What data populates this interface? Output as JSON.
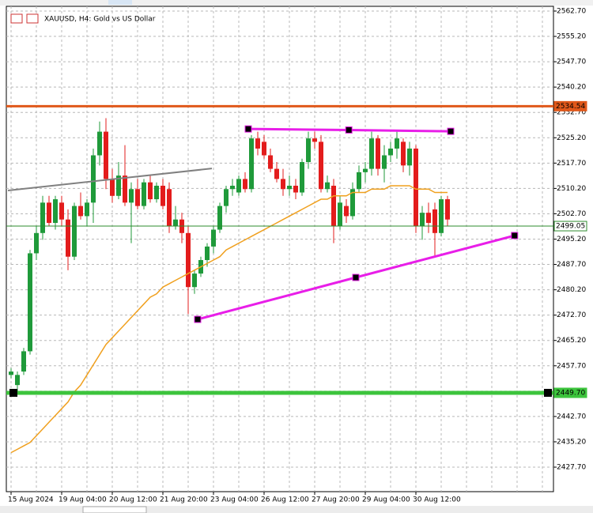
{
  "chart_data": {
    "type": "candlestick",
    "title": "XAUUSD, H4:  Gold vs US Dollar",
    "categories": [
      "15 Aug 2024",
      null,
      null,
      null,
      null,
      null,
      null,
      null,
      "19 Aug 04:00",
      null,
      null,
      null,
      null,
      null,
      null,
      null,
      "20 Aug 12:00",
      null,
      null,
      null,
      null,
      null,
      null,
      null,
      "21 Aug 20:00",
      null,
      null,
      null,
      null,
      null,
      null,
      null,
      "23 Aug 04:00",
      null,
      null,
      null,
      null,
      null,
      null,
      null,
      "26 Aug 12:00",
      null,
      null,
      null,
      null,
      null,
      null,
      null,
      "27 Aug 20:00",
      null,
      null,
      null,
      null,
      null,
      null,
      null,
      "29 Aug 04:00",
      null,
      null,
      null,
      null,
      null,
      null,
      null,
      "30 Aug 12:00",
      null,
      null,
      null,
      null,
      null
    ],
    "open": [
      2455,
      2452,
      2456,
      2462,
      2491,
      2497,
      2506,
      2500,
      2506,
      2501,
      2490,
      2505,
      2502,
      2506,
      2520,
      2527,
      2513,
      2508,
      2514,
      2506,
      2510,
      2505,
      2512,
      2507,
      2511,
      2510,
      2499,
      2501,
      2497,
      2481,
      2485,
      2489,
      2493,
      2498,
      2505,
      2510,
      2509,
      2513,
      2510,
      2525,
      2524,
      2520,
      2516,
      2513,
      2510,
      2511,
      2509,
      2518,
      2525,
      2524,
      2510,
      2511,
      2499,
      2505,
      2502,
      2510,
      2515,
      2516,
      2525,
      2516,
      2520,
      2522,
      2524,
      2517,
      2522,
      2499,
      2503,
      2504,
      2497,
      2507
    ],
    "high": [
      2457,
      2456,
      2463,
      2492,
      2499,
      2508,
      2508,
      2508,
      2508,
      2504,
      2506,
      2509,
      2507,
      2522,
      2530,
      2531,
      2516,
      2518,
      2523,
      2512,
      2513,
      2513,
      2514,
      2512,
      2513,
      2512,
      2505,
      2503,
      2499,
      2486,
      2490,
      2494,
      2499,
      2506,
      2511,
      2513,
      2514,
      2515,
      2526,
      2527,
      2526,
      2522,
      2518,
      2516,
      2514,
      2513,
      2519,
      2527,
      2527,
      2526,
      2514,
      2513,
      2508,
      2507,
      2512,
      2517,
      2518,
      2527,
      2526,
      2523,
      2524,
      2527,
      2525,
      2524,
      2523,
      2505,
      2506,
      2506,
      2508,
      2508
    ],
    "low": [
      2454,
      2450,
      2455,
      2461,
      2489,
      2495,
      2499,
      2498,
      2499,
      2486,
      2489,
      2501,
      2499,
      2500,
      2517,
      2510,
      2506,
      2507,
      2505,
      2494,
      2504,
      2504,
      2506,
      2506,
      2504,
      2497,
      2498,
      2494,
      2473,
      2479,
      2484,
      2487,
      2491,
      2497,
      2503,
      2508,
      2508,
      2509,
      2509,
      2520,
      2519,
      2515,
      2512,
      2508,
      2508,
      2507,
      2508,
      2516,
      2522,
      2509,
      2509,
      2494,
      2498,
      2500,
      2501,
      2509,
      2512,
      2514,
      2514,
      2512,
      2518,
      2519,
      2515,
      2514,
      2497,
      2495,
      2497,
      2490,
      2496,
      2499
    ],
    "close": [
      2456,
      2455,
      2462,
      2491,
      2497,
      2506,
      2500,
      2507,
      2501,
      2490,
      2505,
      2502,
      2506,
      2520,
      2527,
      2513,
      2508,
      2514,
      2506,
      2510,
      2505,
      2512,
      2507,
      2511,
      2505,
      2499,
      2501,
      2497,
      2481,
      2485,
      2489,
      2493,
      2498,
      2505,
      2510,
      2511,
      2513,
      2510,
      2525,
      2522,
      2520,
      2516,
      2513,
      2510,
      2511,
      2509,
      2518,
      2525,
      2524,
      2510,
      2512,
      2499,
      2506,
      2502,
      2510,
      2515,
      2516,
      2525,
      2516,
      2520,
      2522,
      2525,
      2517,
      2522,
      2499,
      2503,
      2500,
      2497,
      2507,
      2501
    ],
    "up_color": "#1f9a3a",
    "down_color": "#e31c1c",
    "moving_average": {
      "color": "#f0a01e",
      "values": [
        2432,
        2433,
        2434,
        2435,
        2437,
        2439,
        2441,
        2443,
        2445,
        2447,
        2450,
        2452,
        2455,
        2458,
        2461,
        2464,
        2466,
        2468,
        2470,
        2472,
        2474,
        2476,
        2478,
        2479,
        2481,
        2482,
        2483,
        2484,
        2485,
        2486,
        2487,
        2488,
        2489,
        2490,
        2492,
        2493,
        2494,
        2495,
        2496,
        2497,
        2498,
        2499,
        2500,
        2501,
        2502,
        2503,
        2504,
        2505,
        2506,
        2507,
        2507,
        2508,
        2508,
        2508,
        2509,
        2509,
        2509,
        2510,
        2510,
        2510,
        2511,
        2511,
        2511,
        2511,
        2510,
        2510,
        2510,
        2509,
        2509,
        2509
      ]
    },
    "ylim": [
      2420.45,
      2564.1
    ],
    "yticks": [
      {
        "value": 2562.7,
        "label": "2562.70"
      },
      {
        "value": 2555.2,
        "label": "2555.20"
      },
      {
        "value": 2547.7,
        "label": "2547.70"
      },
      {
        "value": 2540.2,
        "label": "2540.20"
      },
      {
        "value": 2532.7,
        "label": "2532.70"
      },
      {
        "value": 2525.2,
        "label": "2525.20"
      },
      {
        "value": 2517.7,
        "label": "2517.70"
      },
      {
        "value": 2510.2,
        "label": "2510.20"
      },
      {
        "value": 2502.7,
        "label": "2502.70"
      },
      {
        "value": 2495.2,
        "label": "2495.20"
      },
      {
        "value": 2487.7,
        "label": "2487.70"
      },
      {
        "value": 2480.2,
        "label": "2480.20"
      },
      {
        "value": 2472.7,
        "label": "2472.70"
      },
      {
        "value": 2465.2,
        "label": "2465.20"
      },
      {
        "value": 2457.7,
        "label": "2457.70"
      },
      {
        "value": 2450.2,
        "label": "2450.20"
      },
      {
        "value": 2442.7,
        "label": "2442.70"
      },
      {
        "value": 2435.2,
        "label": "2435.20"
      },
      {
        "value": 2427.7,
        "label": "2427.70"
      }
    ],
    "grid": true,
    "hlines": [
      {
        "value": 2534.54,
        "label": "2534.54",
        "color": "#e0581a",
        "width": 3,
        "label_bg": "#e0581a"
      },
      {
        "value": 2499.05,
        "label": "2499.05",
        "color": "#2e8b2e",
        "width": 1,
        "label_bg": "#ffffff"
      },
      {
        "value": 2449.7,
        "label": "2449.70",
        "color": "#3cc43c",
        "width": 5,
        "label_bg": "#3cc43c"
      }
    ],
    "trendlines": [
      {
        "color": "#808080",
        "points": [
          {
            "x": -0.5,
            "y": 2509.6
          },
          {
            "x": 31.75,
            "y": 2516.1
          }
        ],
        "anchors": false
      },
      {
        "color": "#e81ee8",
        "points": [
          {
            "x": 37.5,
            "y": 2527.8
          },
          {
            "x": 53.4,
            "y": 2527.5
          },
          {
            "x": 69.5,
            "y": 2527.1
          }
        ],
        "anchors": true
      },
      {
        "color": "#e81ee8",
        "points": [
          {
            "x": 29.5,
            "y": 2471.45
          },
          {
            "x": 54.5,
            "y": 2483.85
          },
          {
            "x": 79.6,
            "y": 2496.25
          }
        ],
        "anchors": true
      }
    ]
  }
}
